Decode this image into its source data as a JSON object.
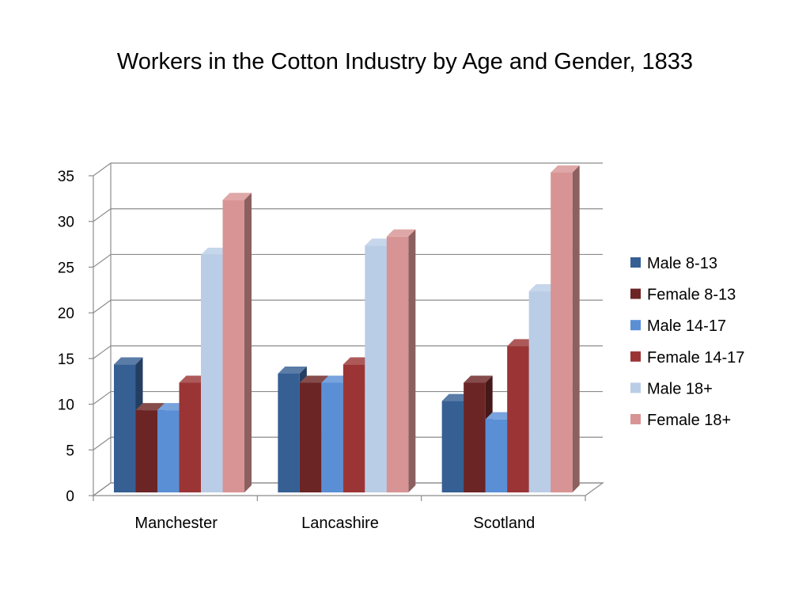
{
  "chart_data": {
    "type": "bar",
    "title": "Workers in the Cotton Industry by Age and Gender, 1833",
    "xlabel": "",
    "ylabel": "",
    "categories": [
      "Manchester",
      "Lancashire",
      "Scotland"
    ],
    "ylim": [
      0,
      35
    ],
    "yticks": [
      0,
      5,
      10,
      15,
      20,
      25,
      30,
      35
    ],
    "grid": true,
    "legend_position": "right",
    "series": [
      {
        "name": "Male 8-13",
        "color": "#365f94",
        "values": [
          14,
          13,
          10
        ]
      },
      {
        "name": "Female 8-13",
        "color": "#6b2525",
        "values": [
          9,
          12,
          12
        ]
      },
      {
        "name": "Male 14-17",
        "color": "#5a8fd6",
        "values": [
          9,
          12,
          8
        ]
      },
      {
        "name": "Female 14-17",
        "color": "#9b3535",
        "values": [
          12,
          14,
          16
        ]
      },
      {
        "name": "Male 18+",
        "color": "#bacde6",
        "values": [
          26,
          27,
          22
        ]
      },
      {
        "name": "Female 18+",
        "color": "#d89494",
        "values": [
          32,
          28,
          35
        ]
      }
    ]
  }
}
